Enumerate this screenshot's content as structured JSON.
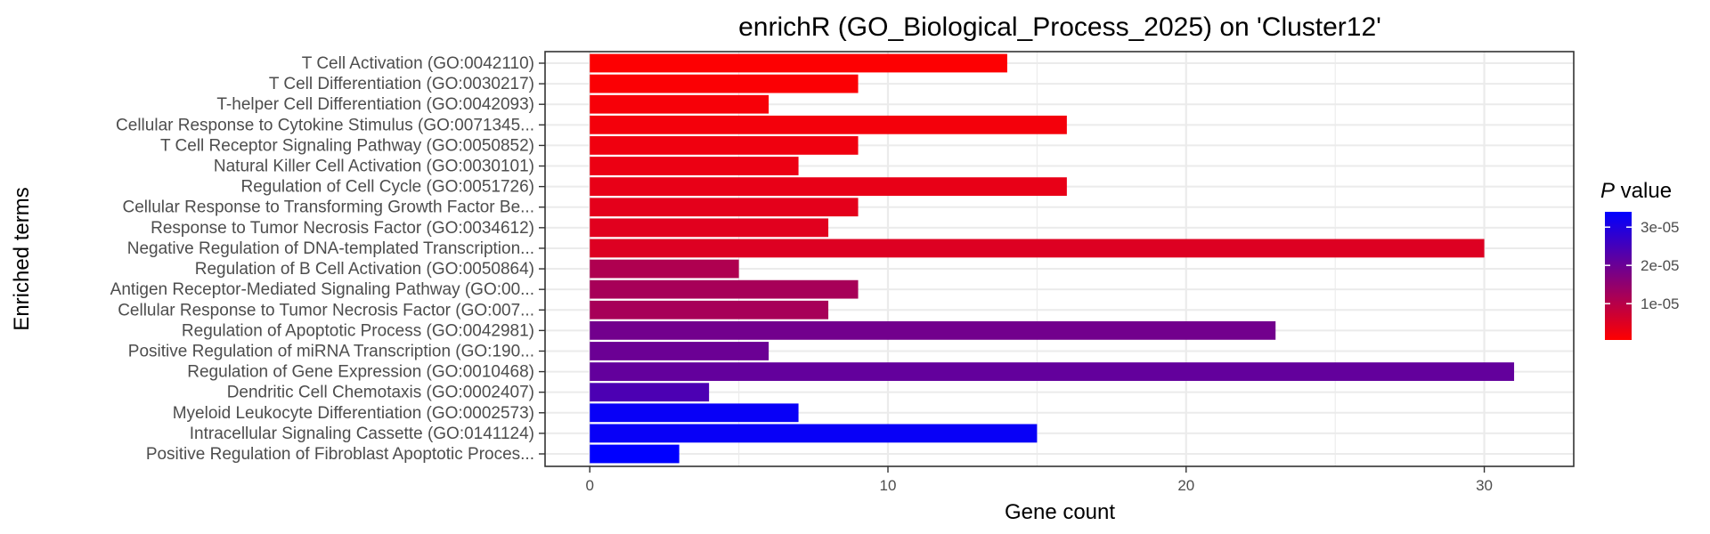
{
  "chart_data": {
    "type": "bar",
    "orientation": "horizontal",
    "title": "enrichR (GO_Biological_Process_2025) on 'Cluster12'",
    "xlabel": "Gene count",
    "ylabel": "Enriched terms",
    "xlim": [
      0,
      32
    ],
    "x_ticks": [
      0,
      10,
      20,
      30
    ],
    "grid": true,
    "legend": {
      "title_italic": "P",
      "title_rest": " value",
      "placement": "right",
      "ticks": [
        {
          "value": 1e-05,
          "label": "1e-05"
        },
        {
          "value": 2e-05,
          "label": "2e-05"
        },
        {
          "value": 3e-05,
          "label": "3e-05"
        }
      ],
      "range": [
        5e-07,
        3.4e-05
      ],
      "low_color": "#ff0000",
      "high_color": "#0000ff"
    },
    "categories": [
      "T Cell Activation (GO:0042110)",
      "T Cell Differentiation (GO:0030217)",
      "T-helper Cell Differentiation (GO:0042093)",
      "Cellular Response to Cytokine Stimulus (GO:0071345...",
      "T Cell Receptor Signaling Pathway (GO:0050852)",
      "Natural Killer Cell Activation (GO:0030101)",
      "Regulation of Cell Cycle (GO:0051726)",
      "Cellular Response to Transforming Growth Factor Be...",
      "Response to Tumor Necrosis Factor (GO:0034612)",
      "Negative Regulation of DNA-templated Transcription...",
      "Regulation of B Cell Activation (GO:0050864)",
      "Antigen Receptor-Mediated Signaling Pathway (GO:00...",
      "Cellular Response to Tumor Necrosis Factor (GO:007...",
      "Regulation of Apoptotic Process (GO:0042981)",
      "Positive Regulation of miRNA Transcription (GO:190...",
      "Regulation of Gene Expression (GO:0010468)",
      "Dendritic Cell Chemotaxis (GO:0002407)",
      "Myeloid Leukocyte Differentiation (GO:0002573)",
      "Intracellular Signaling Cassette (GO:0141124)",
      "Positive Regulation of Fibroblast Apoptotic Proces..."
    ],
    "values": [
      14,
      9,
      6,
      16,
      9,
      7,
      16,
      9,
      8,
      30,
      5,
      9,
      8,
      23,
      6,
      31,
      4,
      7,
      15,
      3
    ],
    "p_values": [
      8e-07,
      1e-06,
      1.5e-06,
      2e-06,
      2.5e-06,
      3e-06,
      3.5e-06,
      4e-06,
      4.5e-06,
      5e-06,
      1.1e-05,
      1.2e-05,
      1.2e-05,
      1.9e-05,
      2e-05,
      2.1e-05,
      2.4e-05,
      3.3e-05,
      3.3e-05,
      3.4e-05
    ]
  }
}
